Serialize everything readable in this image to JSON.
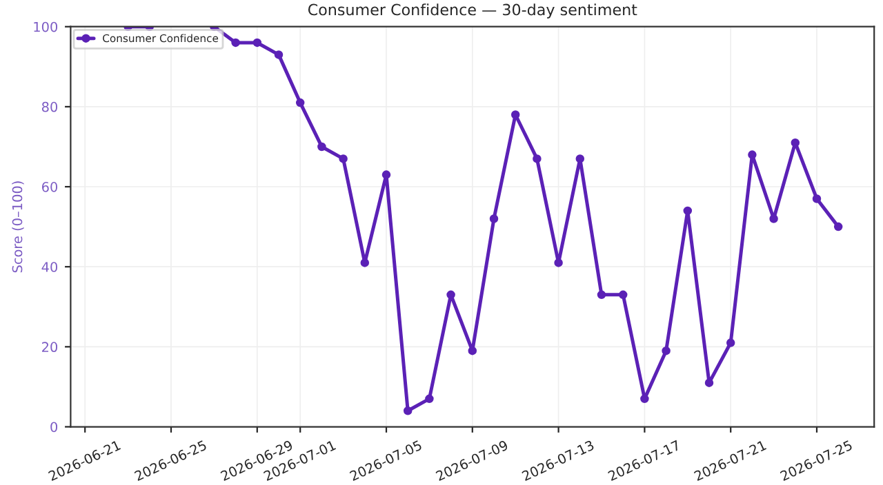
{
  "chart_data": {
    "type": "line",
    "title": "Consumer Confidence — 30-day sentiment",
    "ylabel": "Score (0–100)",
    "x": [
      "2026-06-23",
      "2026-06-24",
      "2026-06-25",
      "2026-06-26",
      "2026-06-27",
      "2026-06-28",
      "2026-06-29",
      "2026-06-30",
      "2026-07-01",
      "2026-07-02",
      "2026-07-03",
      "2026-07-04",
      "2026-07-05",
      "2026-07-06",
      "2026-07-07",
      "2026-07-08",
      "2026-07-09",
      "2026-07-10",
      "2026-07-11",
      "2026-07-12",
      "2026-07-13",
      "2026-07-14",
      "2026-07-15",
      "2026-07-16",
      "2026-07-17",
      "2026-07-18",
      "2026-07-19",
      "2026-07-20",
      "2026-07-21",
      "2026-07-22",
      "2026-07-23",
      "2026-07-24",
      "2026-07-25",
      "2026-07-26"
    ],
    "series": [
      {
        "name": "Consumer Confidence",
        "color": "#5b21b6",
        "values": [
          100,
          100,
          null,
          null,
          100,
          96,
          96,
          93,
          81,
          70,
          67,
          41,
          63,
          4,
          7,
          33,
          19,
          52,
          78,
          67,
          41,
          67,
          33,
          33,
          7,
          19,
          54,
          11,
          21,
          68,
          52,
          71,
          57,
          50
        ]
      }
    ],
    "xlim": [
      "2026-06-20T08:00",
      "2026-07-27T16:00"
    ],
    "xticks": [
      "2026-06-21",
      "2026-06-25",
      "2026-06-29",
      "2026-07-01",
      "2026-07-05",
      "2026-07-09",
      "2026-07-13",
      "2026-07-17",
      "2026-07-21",
      "2026-07-25"
    ],
    "ylim": [
      0,
      100
    ],
    "yticks": [
      0,
      20,
      40,
      60,
      80,
      100
    ],
    "grid": true,
    "legend": "top left",
    "marker": "circle",
    "line_style": "solid"
  }
}
